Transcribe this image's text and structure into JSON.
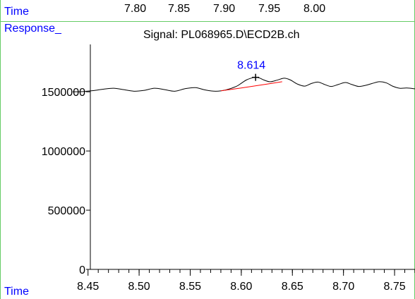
{
  "prev_panel": {
    "time_label": "Time",
    "tick_labels": [
      "7.80",
      "7.85",
      "7.90",
      "7.95",
      "8.00"
    ]
  },
  "response_label": "Response_",
  "chart_data": {
    "type": "line",
    "title": "Signal: PL068965.D\\ECD2B.ch",
    "xlabel": "Time",
    "ylabel": "Response_",
    "xlim": [
      8.435,
      8.77
    ],
    "ylim": [
      0,
      1900000
    ],
    "x_ticks": [
      8.45,
      8.5,
      8.55,
      8.6,
      8.65,
      8.7,
      8.75
    ],
    "x_tick_labels": [
      "8.45",
      "8.50",
      "8.55",
      "8.60",
      "8.65",
      "8.70",
      "8.75"
    ],
    "y_ticks": [
      0,
      500000,
      1000000,
      1500000
    ],
    "y_tick_labels": [
      "0",
      "500000",
      "1000000",
      "1500000"
    ],
    "series": [
      {
        "color": "#000000",
        "x": [
          8.435,
          8.445,
          8.455,
          8.465,
          8.475,
          8.485,
          8.495,
          8.505,
          8.515,
          8.525,
          8.535,
          8.545,
          8.555,
          8.565,
          8.575,
          8.585,
          8.595,
          8.6,
          8.605,
          8.61,
          8.614,
          8.618,
          8.622,
          8.628,
          8.635,
          8.642,
          8.648,
          8.655,
          8.662,
          8.668,
          8.675,
          8.682,
          8.688,
          8.695,
          8.702,
          8.708,
          8.715,
          8.722,
          8.728,
          8.735,
          8.742,
          8.748,
          8.755,
          8.762,
          8.77
        ],
        "y": [
          1500000,
          1502000,
          1510000,
          1522000,
          1530000,
          1518000,
          1505000,
          1512000,
          1530000,
          1518000,
          1505000,
          1526000,
          1535000,
          1515000,
          1505000,
          1516000,
          1545000,
          1572000,
          1600000,
          1616000,
          1622000,
          1616000,
          1600000,
          1585000,
          1598000,
          1615000,
          1600000,
          1565000,
          1548000,
          1568000,
          1582000,
          1560000,
          1545000,
          1562000,
          1578000,
          1562000,
          1545000,
          1555000,
          1570000,
          1585000,
          1575000,
          1548000,
          1530000,
          1532000,
          1525000
        ]
      },
      {
        "color": "#ff0000",
        "x": [
          8.58,
          8.6,
          8.62,
          8.64
        ],
        "y": [
          1508000,
          1532000,
          1558000,
          1585000
        ]
      }
    ],
    "annotations": [
      {
        "text": "8.614",
        "x": 8.614,
        "y": 1622000,
        "color": "#0000ff"
      }
    ]
  }
}
